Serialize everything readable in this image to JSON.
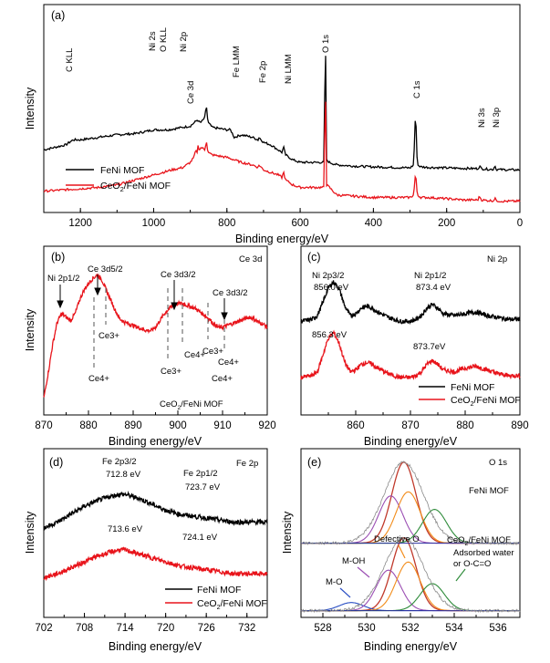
{
  "chart_data": [
    {
      "id": "a",
      "type": "line",
      "panel_label": "(a)",
      "xlabel": "Binding energy/eV",
      "ylabel": "Intensity",
      "xlim": [
        1300,
        0
      ],
      "x_ticks": [
        1200,
        1000,
        800,
        600,
        400,
        200,
        0
      ],
      "legend": [
        "FeNi MOF",
        "CeO2/FeNi MOF"
      ],
      "legend_placement": "bottom-left",
      "annotations": [
        "C KLL",
        "Ni 2s",
        "O KLL",
        "Ni 2p",
        "Fe LMM",
        "Fe 2p",
        "Ni LMM",
        "O 1s",
        "C 1s",
        "Ni 3s",
        "Ni 3p",
        "Ce 3d"
      ],
      "series": [
        {
          "name": "FeNi MOF",
          "color": "#000000",
          "x": [
            1300,
            1270,
            1240,
            1220,
            1200,
            1150,
            1100,
            1050,
            1000,
            980,
            960,
            940,
            900,
            880,
            875,
            870,
            860,
            856,
            852,
            840,
            800,
            790,
            780,
            760,
            730,
            715,
            712,
            700,
            680,
            660,
            650,
            645,
            640,
            620,
            600,
            560,
            535,
            531,
            528,
            520,
            500,
            450,
            400,
            350,
            300,
            290,
            285,
            280,
            270,
            250,
            200,
            150,
            115,
            110,
            105,
            90,
            72,
            68,
            65,
            50,
            20,
            0
          ],
          "y": [
            17,
            18,
            19,
            21,
            21,
            22,
            23,
            23.5,
            25,
            25,
            25,
            25.5,
            26.5,
            29,
            28,
            28,
            30,
            35,
            28,
            26,
            25,
            25,
            22,
            23,
            22,
            21,
            22,
            20,
            19,
            17,
            16,
            18,
            15,
            13,
            12,
            12,
            12,
            65,
            13,
            12,
            11,
            10.5,
            10.2,
            10,
            9.8,
            11,
            33,
            11,
            10.2,
            10,
            9.8,
            9.6,
            9.5,
            10.5,
            9.5,
            9.3,
            9.2,
            11,
            9.2,
            9.1,
            9,
            9
          ]
        },
        {
          "name": "CeO2/FeNi MOF",
          "color": "#e8141b",
          "x": [
            1300,
            1250,
            1200,
            1150,
            1100,
            1050,
            1000,
            950,
            920,
            900,
            890,
            885,
            882,
            880,
            875,
            870,
            860,
            856,
            852,
            840,
            800,
            780,
            760,
            730,
            715,
            712,
            700,
            680,
            660,
            650,
            645,
            640,
            620,
            600,
            560,
            535,
            531,
            528,
            520,
            500,
            450,
            400,
            350,
            300,
            290,
            285,
            280,
            270,
            250,
            200,
            150,
            115,
            110,
            105,
            90,
            72,
            68,
            65,
            50,
            20,
            0
          ],
          "y": [
            0.5,
            1,
            1.5,
            2,
            3,
            5,
            7,
            9,
            10,
            12,
            14,
            17,
            15,
            19,
            17,
            18,
            17,
            21,
            16,
            15,
            14,
            13,
            12,
            11,
            10,
            11,
            9,
            8,
            7,
            6,
            8,
            5,
            3,
            2,
            2,
            2,
            45,
            3,
            2,
            -1,
            -1.5,
            -2,
            -2,
            -2,
            -1,
            8,
            -1,
            -2,
            -2,
            -2.5,
            -3,
            -3,
            -1.5,
            -3,
            -3.2,
            -3.3,
            -2,
            -3.3,
            -3.5,
            -3.5,
            -3.5
          ]
        }
      ]
    },
    {
      "id": "b",
      "type": "line",
      "panel_label": "(b)",
      "title": "Ce 3d",
      "xlabel": "Binding energy/eV",
      "ylabel": "Intensity",
      "xlim": [
        870,
        920
      ],
      "x_ticks": [
        870,
        880,
        890,
        900,
        910,
        920
      ],
      "annotations": [
        "Ni 2p1/2",
        "Ce 3d5/2",
        "Ce 3d3/2",
        "Ce 3d3/2",
        "Ce4+",
        "Ce3+",
        "Ce4+",
        "Ce3+",
        "Ce4+",
        "Ce3+",
        "Ce4+"
      ],
      "sample_label": "CeO2/FeNi MOF",
      "series": [
        {
          "name": "CeO2/FeNi MOF",
          "color": "#e8141b",
          "x": [
            870,
            871,
            872,
            873,
            874,
            875,
            876,
            877,
            878,
            879,
            880,
            881,
            882,
            883,
            884,
            885,
            886,
            887,
            888,
            889,
            890,
            891,
            892,
            893,
            894,
            895,
            896,
            897,
            898,
            899,
            900,
            901,
            902,
            903,
            904,
            905,
            906,
            907,
            908,
            909,
            910,
            911,
            912,
            913,
            914,
            915,
            916,
            917,
            918,
            919,
            920
          ],
          "y": [
            10,
            25,
            42,
            55,
            60,
            58,
            56,
            60,
            68,
            74,
            78,
            81,
            83,
            80,
            74,
            68,
            62,
            57,
            55,
            54,
            53,
            52,
            51,
            50,
            50,
            52,
            56,
            60,
            63,
            65,
            66,
            66,
            65,
            64,
            63,
            61,
            59,
            57,
            54,
            52,
            52,
            53,
            54,
            55,
            56,
            57,
            58,
            57,
            55,
            54,
            52
          ]
        }
      ]
    },
    {
      "id": "c",
      "type": "line",
      "panel_label": "(c)",
      "title": "Ni 2p",
      "xlabel": "Binding energy/eV",
      "xlim": [
        850,
        890
      ],
      "x_ticks": [
        860,
        870,
        880,
        890
      ],
      "annotations": [
        "Ni 2p3/2",
        "856.0 eV",
        "Ni 2p1/2",
        "873.4 eV",
        "856.3 eV",
        "873.7eV"
      ],
      "legend": [
        "FeNi MOF",
        "CeO2/FeNi MOF"
      ],
      "legend_placement": "bottom-right",
      "series": [
        {
          "name": "FeNi MOF",
          "color": "#000000",
          "x": [
            850,
            852,
            853,
            854,
            855,
            856,
            857,
            858,
            859,
            860,
            861,
            862,
            863,
            864,
            866,
            868,
            870,
            871,
            872,
            873,
            874,
            875,
            876,
            878,
            880,
            882,
            884,
            886,
            888,
            890
          ],
          "y": [
            60,
            61,
            63,
            70,
            78,
            81,
            77,
            68,
            63,
            64,
            67,
            68,
            67,
            65,
            62,
            60,
            60,
            61,
            63,
            67,
            69,
            67,
            64,
            63,
            64,
            65,
            63,
            62,
            61,
            61
          ]
        },
        {
          "name": "CeO2/FeNi MOF",
          "color": "#e8141b",
          "x": [
            850,
            852,
            853,
            854,
            855,
            856,
            857,
            858,
            859,
            860,
            861,
            862,
            863,
            864,
            866,
            868,
            870,
            871,
            872,
            873,
            874,
            875,
            876,
            878,
            880,
            882,
            884,
            886,
            888,
            890
          ],
          "y": [
            30,
            31,
            33,
            42,
            51,
            54,
            48,
            38,
            33,
            34,
            37,
            38,
            37,
            35,
            32,
            30,
            30,
            31,
            33,
            37,
            39,
            37,
            34,
            33,
            35,
            36,
            34,
            32,
            31,
            31
          ]
        }
      ]
    },
    {
      "id": "d",
      "type": "line",
      "panel_label": "(d)",
      "title": "Fe 2p",
      "xlabel": "Binding energy/eV",
      "ylabel": "Intensity",
      "xlim": [
        702,
        735
      ],
      "x_ticks": [
        702,
        708,
        714,
        720,
        726,
        732
      ],
      "annotations": [
        "Fe 2p3/2",
        "712.8 eV",
        "Fe 2p1/2",
        "723.7 eV",
        "713.6 eV",
        "724.1 eV"
      ],
      "legend": [
        "FeNi MOF",
        "CeO2/FeNi MOF"
      ],
      "legend_placement": "bottom-right",
      "series": [
        {
          "name": "FeNi MOF",
          "color": "#000000",
          "x": [
            702,
            704,
            706,
            708,
            710,
            712,
            713,
            714,
            715,
            716,
            718,
            720,
            722,
            724,
            726,
            728,
            730,
            732,
            735
          ],
          "y": [
            55,
            58,
            62,
            66,
            69,
            71,
            72,
            72,
            71,
            70,
            67,
            64,
            62,
            61,
            60,
            59,
            58,
            58,
            58
          ]
        },
        {
          "name": "CeO2/FeNi MOF",
          "color": "#e8141b",
          "x": [
            702,
            704,
            706,
            708,
            710,
            712,
            713,
            714,
            715,
            716,
            718,
            720,
            722,
            724,
            726,
            728,
            730,
            732,
            735
          ],
          "y": [
            30,
            32,
            35,
            38,
            41,
            43,
            44,
            44,
            43,
            42,
            40,
            38,
            36,
            35,
            34,
            33,
            32,
            32,
            32
          ]
        }
      ]
    },
    {
      "id": "e",
      "type": "line",
      "panel_label": "(e)",
      "title": "O 1s",
      "xlabel": "Binding energy/eV",
      "ylabel": "Intensity",
      "xlim": [
        527,
        537
      ],
      "x_ticks": [
        528,
        530,
        532,
        534,
        536
      ],
      "annotations": [
        "FeNi MOF",
        "CeO2/FeNi MOF",
        "Defective O",
        "M-OH",
        "M-O",
        "Adsorbed water",
        "or O-C=O"
      ],
      "components": [
        "M-O",
        "M-OH",
        "Defective O",
        "Adsorbed water or O-C=O"
      ],
      "series": [
        {
          "name": "FeNi MOF total",
          "color": "#c0392b",
          "center": 531.7,
          "amplitude": 60,
          "offset": 50
        },
        {
          "name": "FeNi MOF M-OH",
          "color": "#9b4fb3",
          "center": 531.1,
          "amplitude": 35,
          "offset": 50
        },
        {
          "name": "FeNi MOF Defective O",
          "color": "#f28c1a",
          "center": 531.9,
          "amplitude": 38,
          "offset": 50
        },
        {
          "name": "FeNi MOF Adsorbed water",
          "color": "#2e8b3a",
          "center": 533.1,
          "amplitude": 25,
          "offset": 50
        },
        {
          "name": "CeO2/FeNi MOF total",
          "color": "#c0392b",
          "center": 531.7,
          "amplitude": 54,
          "offset": 0
        },
        {
          "name": "CeO2/FeNi MOF M-O",
          "color": "#2a4fc4",
          "center": 529.3,
          "amplitude": 6,
          "offset": 0
        },
        {
          "name": "CeO2/FeNi MOF M-OH",
          "color": "#9b4fb3",
          "center": 531.0,
          "amplitude": 30,
          "offset": 0
        },
        {
          "name": "CeO2/FeNi MOF Defective O",
          "color": "#f28c1a",
          "center": 531.9,
          "amplitude": 36,
          "offset": 0
        },
        {
          "name": "CeO2/FeNi MOF Adsorbed water",
          "color": "#2e8b3a",
          "center": 533.0,
          "amplitude": 20,
          "offset": 0
        }
      ]
    }
  ]
}
